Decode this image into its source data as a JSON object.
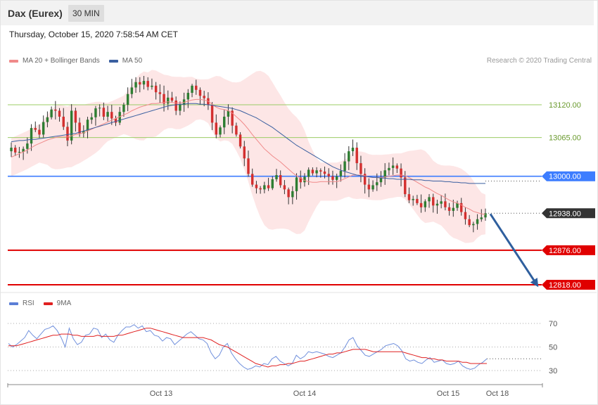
{
  "header": {
    "instrument": "Dax (Eurex)",
    "timeframe": "30 MIN"
  },
  "timestamp": "Thursday, October 15, 2020 7:58:54 AM CET",
  "legend_main": {
    "items": [
      {
        "label": "MA 20 + Bollinger Bands",
        "color": "#f08a8a"
      },
      {
        "label": "MA 50",
        "color": "#3a5fa0"
      }
    ]
  },
  "credit": "Research © 2020 Trading Central",
  "legend_rsi": {
    "items": [
      {
        "label": "RSI",
        "color": "#5b7fd6"
      },
      {
        "label": "9MA",
        "color": "#e02020"
      }
    ]
  },
  "colors": {
    "up_candle": "#2e7d32",
    "down_candle": "#d32f2f",
    "resistance_line": "#9ccc65",
    "pivot_line": "#3d7dff",
    "support_line": "#e00000",
    "band_fill": "#fde3e3",
    "arrow": "#2f5f9e"
  },
  "chart_data": [
    {
      "type": "candlestick",
      "title": "",
      "ylim": [
        12790,
        13230
      ],
      "x_tick_labels": [
        "Oct 13",
        "Oct 14",
        "Oct 15",
        "Oct 18"
      ],
      "levels": [
        {
          "value": 13120.0,
          "label": "13120.00",
          "kind": "resistance"
        },
        {
          "value": 13065.0,
          "label": "13065.00",
          "kind": "resistance"
        },
        {
          "value": 13000.0,
          "label": "13000.00",
          "kind": "pivot"
        },
        {
          "value": 12938.0,
          "label": "12938.00",
          "kind": "last"
        },
        {
          "value": 12876.0,
          "label": "12876.00",
          "kind": "support"
        },
        {
          "value": 12818.0,
          "label": "12818.00",
          "kind": "support"
        }
      ],
      "close": [
        13048,
        13040,
        13041,
        13046,
        13055,
        13081,
        13078,
        13070,
        13091,
        13099,
        13112,
        13110,
        13100,
        13083,
        13060,
        13110,
        13090,
        13072,
        13076,
        13095,
        13099,
        13114,
        13115,
        13100,
        13108,
        13097,
        13090,
        13108,
        13120,
        13138,
        13149,
        13158,
        13154,
        13160,
        13150,
        13152,
        13141,
        13138,
        13122,
        13132,
        13127,
        13110,
        13120,
        13129,
        13140,
        13152,
        13145,
        13135,
        13131,
        13120,
        13090,
        13070,
        13082,
        13100,
        13110,
        13085,
        13070,
        13050,
        13030,
        13004,
        12986,
        12980,
        12978,
        12985,
        12980,
        12995,
        13002,
        12985,
        12978,
        12965,
        12975,
        12998,
        12990,
        12999,
        13011,
        13005,
        13010,
        13008,
        13004,
        13000,
        12994,
        13000,
        13009,
        13025,
        13042,
        13048,
        13022,
        13004,
        12986,
        12978,
        12985,
        12990,
        12998,
        13010,
        13014,
        13018,
        13013,
        12998,
        12970,
        12960,
        12962,
        12955,
        12948,
        12958,
        12965,
        12951,
        12954,
        12958,
        12948,
        12942,
        12947,
        12955,
        12940,
        12928,
        12918,
        12920,
        12928,
        12931,
        12938
      ],
      "ma20": [
        13032,
        13035,
        13038,
        13041,
        13044,
        13048,
        13052,
        13055,
        13058,
        13061,
        13063,
        13065,
        13066,
        13066,
        13066,
        13068,
        13070,
        13071,
        13073,
        13076,
        13079,
        13082,
        13085,
        13088,
        13091,
        13094,
        13097,
        13100,
        13103,
        13106,
        13110,
        13113,
        13116,
        13118,
        13120,
        13122,
        13122,
        13123,
        13124,
        13125,
        13124,
        13123,
        13123,
        13124,
        13126,
        13128,
        13129,
        13129,
        13128,
        13126,
        13121,
        13116,
        13113,
        13112,
        13110,
        13106,
        13100,
        13094,
        13087,
        13079,
        13070,
        13062,
        13054,
        13046,
        13040,
        13034,
        13029,
        13024,
        13018,
        13012,
        13006,
        13001,
        12997,
        12993,
        12991,
        12990,
        12990,
        12991,
        12991,
        12991,
        12991,
        12991,
        12993,
        12996,
        12999,
        13002,
        13002,
        13002,
        13001,
        12999,
        12998,
        12998,
        12998,
        12999,
        13000,
        13001,
        13002,
        13002,
        13001,
        12998,
        12994,
        12990,
        12986,
        12982,
        12979,
        12975,
        12971,
        12968,
        12964,
        12960,
        12957,
        12955,
        12952,
        12948,
        12945,
        12941,
        12939,
        12937,
        12936
      ],
      "ma50": [
        13058,
        13059,
        13060,
        13060,
        13061,
        13062,
        13062,
        13063,
        13064,
        13065,
        13066,
        13067,
        13068,
        13069,
        13070,
        13071,
        13072,
        13074,
        13076,
        13078,
        13080,
        13082,
        13084,
        13086,
        13088,
        13090,
        13092,
        13094,
        13096,
        13098,
        13100,
        13102,
        13104,
        13106,
        13108,
        13110,
        13112,
        13114,
        13116,
        13118,
        13119,
        13120,
        13121,
        13121,
        13122,
        13122,
        13122,
        13121,
        13121,
        13120,
        13119,
        13118,
        13117,
        13116,
        13115,
        13114,
        13112,
        13110,
        13107,
        13104,
        13101,
        13098,
        13094,
        13090,
        13086,
        13082,
        13077,
        13072,
        13067,
        13062,
        13057,
        13052,
        13048,
        13044,
        13040,
        13036,
        13032,
        13028,
        13024,
        13020,
        13016,
        13013,
        13010,
        13008,
        13006,
        13004,
        13002,
        13001,
        13000,
        12999,
        12998,
        12998,
        12997,
        12997,
        12996,
        12996,
        12995,
        12995,
        12995,
        12995,
        12994,
        12994,
        12994,
        12993,
        12993,
        12992,
        12992,
        12992,
        12991,
        12991,
        12990,
        12990,
        12989,
        12989,
        12988,
        12988,
        12988,
        12988,
        12988
      ]
    },
    {
      "type": "line",
      "title": "",
      "ylim": [
        20,
        80
      ],
      "y_ticks": [
        70,
        50,
        30
      ],
      "series": [
        {
          "name": "RSI",
          "values": [
            53,
            50,
            52,
            55,
            58,
            64,
            60,
            57,
            61,
            65,
            66,
            68,
            64,
            58,
            50,
            66,
            57,
            52,
            54,
            60,
            61,
            66,
            65,
            58,
            61,
            56,
            54,
            60,
            64,
            67,
            67,
            69,
            66,
            68,
            63,
            64,
            60,
            59,
            55,
            58,
            57,
            52,
            55,
            58,
            61,
            63,
            60,
            57,
            56,
            53,
            45,
            40,
            43,
            50,
            53,
            45,
            40,
            36,
            33,
            31,
            32,
            34,
            33,
            36,
            35,
            40,
            42,
            38,
            36,
            34,
            36,
            43,
            40,
            42,
            46,
            45,
            46,
            45,
            44,
            42,
            41,
            43,
            45,
            50,
            56,
            58,
            51,
            47,
            43,
            42,
            44,
            46,
            48,
            51,
            52,
            53,
            51,
            47,
            40,
            38,
            39,
            37,
            36,
            39,
            41,
            37,
            38,
            39,
            36,
            35,
            36,
            38,
            34,
            32,
            31,
            32,
            35,
            37,
            40
          ]
        },
        {
          "name": "9MA",
          "values": [
            51,
            51,
            51,
            52,
            53,
            54,
            55,
            56,
            57,
            58,
            59,
            60,
            60,
            61,
            61,
            61,
            60,
            60,
            59,
            59,
            59,
            59,
            60,
            59,
            59,
            59,
            59,
            60,
            60,
            61,
            62,
            63,
            64,
            65,
            66,
            66,
            65,
            64,
            63,
            62,
            61,
            60,
            59,
            58,
            58,
            58,
            58,
            58,
            58,
            57,
            56,
            54,
            52,
            51,
            50,
            48,
            46,
            44,
            42,
            40,
            38,
            36,
            35,
            34,
            33,
            34,
            34,
            35,
            35,
            36,
            36,
            37,
            38,
            38,
            39,
            40,
            41,
            42,
            43,
            44,
            44,
            45,
            45,
            46,
            47,
            48,
            48,
            48,
            48,
            47,
            46,
            46,
            46,
            46,
            46,
            46,
            46,
            46,
            45,
            44,
            43,
            42,
            41,
            41,
            40,
            40,
            39,
            39,
            38,
            38,
            38,
            38,
            37,
            37,
            36,
            36,
            36,
            36,
            36
          ]
        }
      ]
    }
  ]
}
